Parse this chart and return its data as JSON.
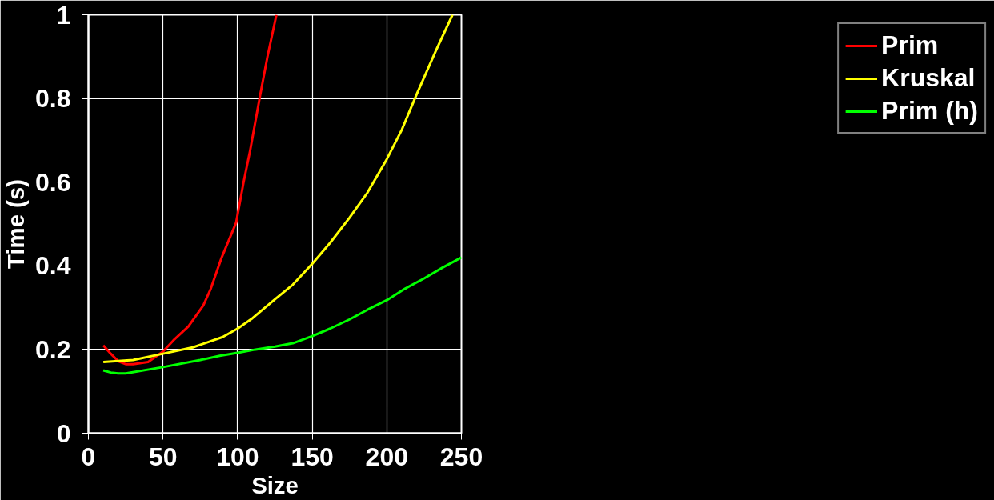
{
  "chart_data": {
    "type": "line",
    "xlabel": "Size",
    "ylabel": "Time (s)",
    "xlim": [
      0,
      250
    ],
    "ylim": [
      0,
      1
    ],
    "xticks": [
      0,
      50,
      100,
      150,
      200,
      250
    ],
    "yticks": [
      0,
      0.2,
      0.4,
      0.6,
      0.8,
      1
    ],
    "grid": true,
    "legend": "right",
    "marker": "none",
    "line_style": "solid",
    "series": [
      {
        "name": "Prim",
        "color": "#ff0000",
        "x": [
          10,
          15,
          20,
          25,
          30,
          40,
          50,
          57,
          67,
          77,
          82,
          89,
          99,
          104,
          108.4,
          115,
          120,
          126
        ],
        "values": [
          0.21,
          0.19,
          0.172,
          0.165,
          0.165,
          0.17,
          0.195,
          0.222,
          0.255,
          0.305,
          0.345,
          0.417,
          0.503,
          0.6,
          0.676,
          0.806,
          0.9,
          1.0
        ]
      },
      {
        "name": "Kruskal",
        "color": "#ffff00",
        "x": [
          10,
          30,
          50,
          70,
          90,
          100,
          110,
          125,
          137,
          150,
          162,
          175,
          187,
          200,
          210,
          220,
          233,
          244
        ],
        "values": [
          0.17,
          0.175,
          0.19,
          0.205,
          0.23,
          0.25,
          0.275,
          0.32,
          0.355,
          0.405,
          0.455,
          0.515,
          0.575,
          0.655,
          0.725,
          0.81,
          0.915,
          1.0
        ]
      },
      {
        "name": "Prim (h)",
        "color": "#00ff00",
        "x": [
          10,
          15,
          20,
          25,
          50,
          75,
          88,
          100,
          112,
          125,
          137,
          150,
          162,
          175,
          187,
          200,
          212,
          225,
          237,
          250
        ],
        "values": [
          0.15,
          0.145,
          0.143,
          0.143,
          0.158,
          0.175,
          0.185,
          0.192,
          0.2,
          0.207,
          0.215,
          0.232,
          0.25,
          0.272,
          0.295,
          0.318,
          0.345,
          0.37,
          0.395,
          0.42
        ]
      }
    ]
  }
}
